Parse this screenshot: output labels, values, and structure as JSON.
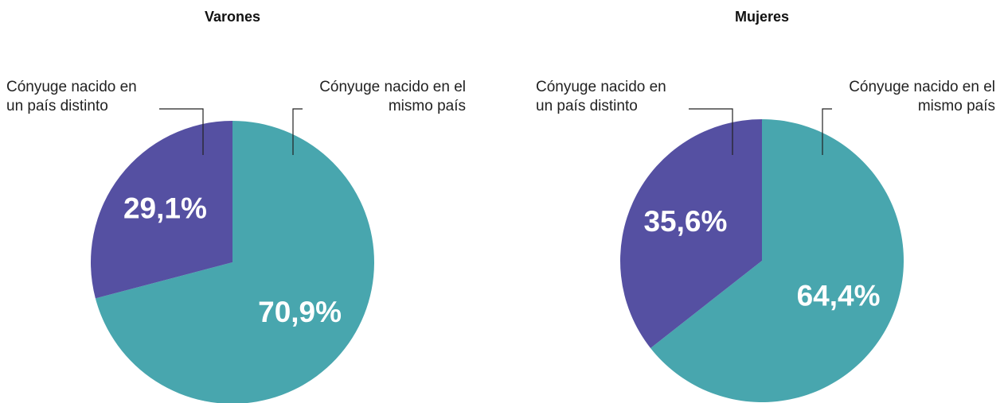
{
  "chart_data": [
    {
      "type": "pie",
      "title": "Varones",
      "categories": [
        "Cónyuge nacido en el mismo país",
        "Cónyuge nacido en un país distinto"
      ],
      "values": [
        70.9,
        29.1
      ],
      "value_labels": [
        "70,9%",
        "29,1%"
      ],
      "colors": [
        "#48a6ae",
        "#5550a2"
      ]
    },
    {
      "type": "pie",
      "title": "Mujeres",
      "categories": [
        "Cónyuge nacido en el mismo país",
        "Cónyuge nacido en un país distinto"
      ],
      "values": [
        64.4,
        35.6
      ],
      "value_labels": [
        "64,4%",
        "35,6%"
      ],
      "colors": [
        "#48a6ae",
        "#5550a2"
      ]
    }
  ]
}
